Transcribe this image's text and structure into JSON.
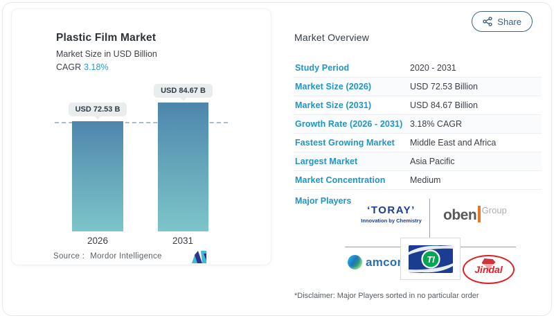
{
  "share": {
    "label": "Share"
  },
  "chart": {
    "title": "Plastic Film Market",
    "subtitle": "Market Size in USD Billion",
    "cagr_label": "CAGR",
    "cagr_value": "3.18%",
    "source_label": "Source :",
    "source_value": "Mordor Intelligence"
  },
  "chart_data": {
    "type": "bar",
    "title": "Plastic Film Market",
    "ylabel": "Market Size in USD Billion",
    "unit": "USD Billion",
    "categories": [
      "2026",
      "2031"
    ],
    "values": [
      72.53,
      84.67
    ],
    "value_labels": [
      "USD 72.53 B",
      "USD 84.67 B"
    ],
    "ylim": [
      0,
      84.67
    ],
    "grid": false,
    "annotations": [
      "horizontal dashed reference line at 2026 value (72.53)"
    ],
    "colors": {
      "bar_gradient_top": "#4d85ad",
      "bar_gradient_bottom": "#7cc5c9",
      "dashed_line": "#a9bcc7"
    }
  },
  "overview": {
    "heading": "Market Overview",
    "rows": [
      {
        "label": "Study Period",
        "value": "2020 - 2031"
      },
      {
        "label": "Market Size (2026)",
        "value": "USD 72.53 Billion"
      },
      {
        "label": "Market Size (2031)",
        "value": "USD 84.67 Billion"
      },
      {
        "label": "Growth Rate (2026 - 2031)",
        "value": "3.18% CAGR"
      },
      {
        "label": "Fastest Growing Market",
        "value": "Middle East and Africa"
      },
      {
        "label": "Largest Market",
        "value": "Asia Pacific"
      },
      {
        "label": "Market Concentration",
        "value": "Medium"
      }
    ],
    "major_players_label": "Major Players",
    "players": [
      "Toray",
      "Oben Group",
      "Amcor",
      "Time Technoplast (TI)",
      "Jindal"
    ],
    "disclaimer": "*Disclaimer: Major Players sorted in no particular order"
  },
  "logos": {
    "toray": {
      "quote_left": "‘",
      "text": "TORAY",
      "quote_right": "’",
      "tagline": "Innovation by Chemistry"
    },
    "oben": {
      "text": "oben",
      "suffix": "Group"
    },
    "amcor": {
      "text": "amcor"
    },
    "ti": {
      "text": "TI"
    },
    "jindal": {
      "text": "Jindal"
    }
  },
  "colors": {
    "accent_blue": "#2095c5",
    "share_outline": "#3a637f",
    "toray_navy": "#1b3e93",
    "oben_orange": "#e87722",
    "amcor_blue": "#2a6fb5",
    "ti_navy": "#1b3d91",
    "ti_green": "#00a651",
    "jindal_red": "#e31e24",
    "mordor_navy": "#2e3192",
    "mordor_teal": "#3fbcd3"
  }
}
